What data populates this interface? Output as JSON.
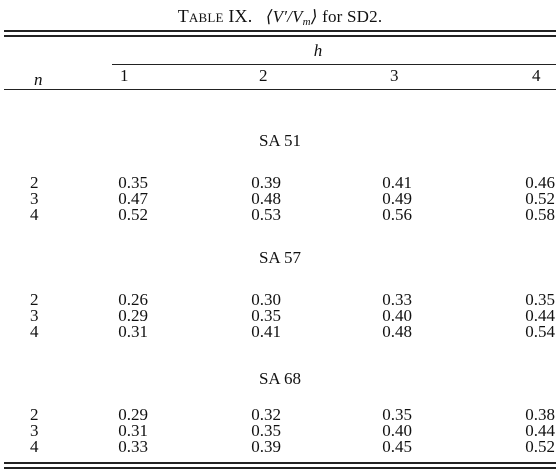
{
  "table": {
    "caption": {
      "label": "Table IX.",
      "expr_open": "⟨V′/V",
      "expr_sub": "m",
      "expr_close": "⟩",
      "suffix": "for SD2."
    },
    "row_header": "n",
    "group_header": "h",
    "columns": [
      "1",
      "2",
      "3",
      "4"
    ],
    "sections": [
      {
        "name": "SA 51",
        "rows": [
          {
            "n": "2",
            "values": [
              "0.35",
              "0.39",
              "0.41",
              "0.46"
            ]
          },
          {
            "n": "3",
            "values": [
              "0.47",
              "0.48",
              "0.49",
              "0.52"
            ]
          },
          {
            "n": "4",
            "values": [
              "0.52",
              "0.53",
              "0.56",
              "0.58"
            ]
          }
        ]
      },
      {
        "name": "SA 57",
        "rows": [
          {
            "n": "2",
            "values": [
              "0.26",
              "0.30",
              "0.33",
              "0.35"
            ]
          },
          {
            "n": "3",
            "values": [
              "0.29",
              "0.35",
              "0.40",
              "0.44"
            ]
          },
          {
            "n": "4",
            "values": [
              "0.31",
              "0.41",
              "0.48",
              "0.54"
            ]
          }
        ]
      },
      {
        "name": "SA 68",
        "rows": [
          {
            "n": "2",
            "values": [
              "0.29",
              "0.32",
              "0.35",
              "0.38"
            ]
          },
          {
            "n": "3",
            "values": [
              "0.31",
              "0.35",
              "0.40",
              "0.44"
            ]
          },
          {
            "n": "4",
            "values": [
              "0.33",
              "0.39",
              "0.45",
              "0.52"
            ]
          }
        ]
      }
    ]
  }
}
